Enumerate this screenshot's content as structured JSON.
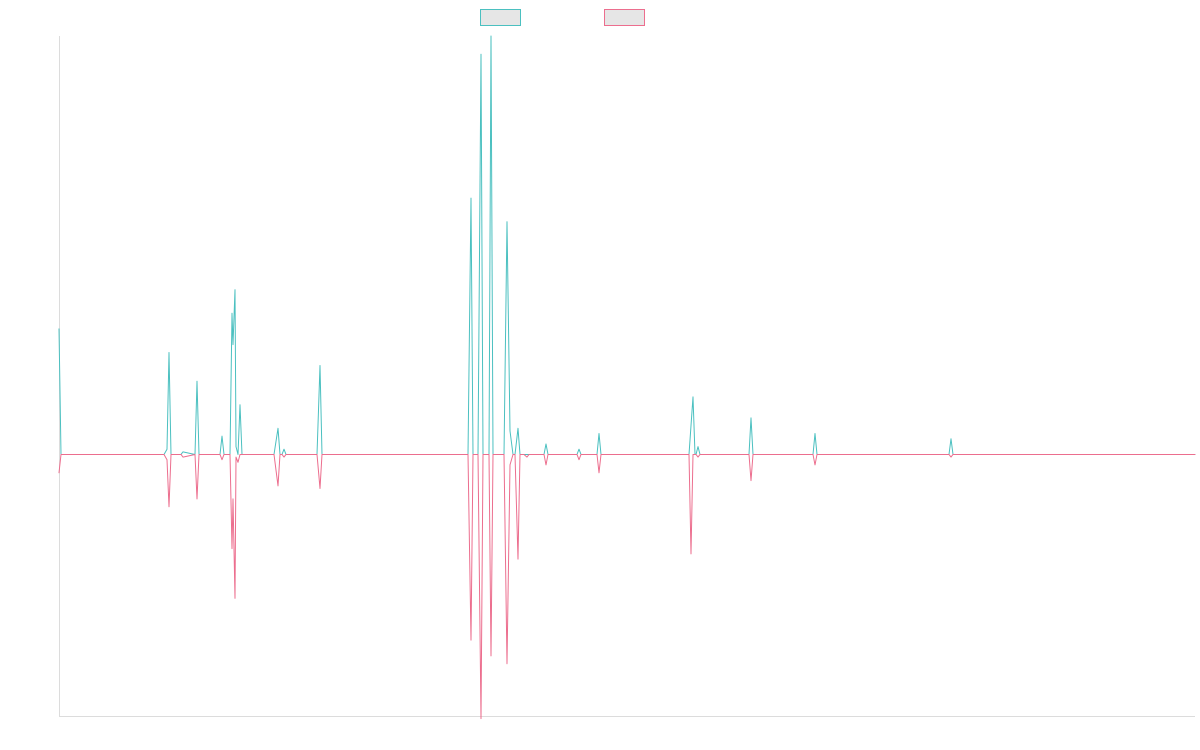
{
  "chart_data": {
    "type": "line",
    "title": "",
    "xlabel": "",
    "ylabel": "",
    "grid": false,
    "legend_position": "top-center",
    "xlim": [
      0,
      1136
    ],
    "ylim": [
      -100,
      160
    ],
    "series": [
      {
        "color": "#4bc0c0",
        "legend_fill": "#e6e6e6",
        "points": [
          [
            0,
            48
          ],
          [
            2,
            0
          ],
          [
            105,
            0
          ],
          [
            108,
            2
          ],
          [
            110,
            39
          ],
          [
            112,
            0
          ],
          [
            122,
            0
          ],
          [
            124,
            1
          ],
          [
            136,
            0
          ],
          [
            138,
            28
          ],
          [
            140,
            0
          ],
          [
            161,
            0
          ],
          [
            163,
            7
          ],
          [
            165,
            0
          ],
          [
            171,
            0
          ],
          [
            173,
            54
          ],
          [
            174,
            42
          ],
          [
            176,
            63
          ],
          [
            177,
            3
          ],
          [
            179,
            0
          ],
          [
            181,
            19
          ],
          [
            183,
            0
          ],
          [
            215,
            0
          ],
          [
            219,
            10
          ],
          [
            221,
            0
          ],
          [
            223,
            0
          ],
          [
            225,
            2
          ],
          [
            227,
            0
          ],
          [
            258,
            0
          ],
          [
            261,
            34
          ],
          [
            263,
            0
          ],
          [
            322,
            0
          ],
          [
            324,
            0
          ],
          [
            409,
            0
          ],
          [
            412,
            98
          ],
          [
            414,
            0
          ],
          [
            419,
            0
          ],
          [
            422,
            153
          ],
          [
            424,
            0
          ],
          [
            430,
            0
          ],
          [
            432,
            160
          ],
          [
            434,
            0
          ],
          [
            445,
            0
          ],
          [
            448,
            89
          ],
          [
            451,
            9
          ],
          [
            454,
            0
          ],
          [
            456,
            0
          ],
          [
            459,
            10
          ],
          [
            461,
            0
          ],
          [
            465,
            0
          ],
          [
            468,
            0
          ],
          [
            470,
            0
          ],
          [
            485,
            0
          ],
          [
            487,
            4
          ],
          [
            489,
            0
          ],
          [
            518,
            0
          ],
          [
            520,
            2
          ],
          [
            522,
            0
          ],
          [
            538,
            0
          ],
          [
            540,
            8
          ],
          [
            542,
            0
          ],
          [
            630,
            0
          ],
          [
            634,
            22
          ],
          [
            636,
            0
          ],
          [
            637,
            0
          ],
          [
            639,
            3
          ],
          [
            641,
            0
          ],
          [
            690,
            0
          ],
          [
            692,
            14
          ],
          [
            694,
            0
          ],
          [
            754,
            0
          ],
          [
            756,
            8
          ],
          [
            758,
            0
          ],
          [
            800,
            0
          ],
          [
            802,
            0
          ],
          [
            890,
            0
          ],
          [
            892,
            6
          ],
          [
            894,
            0
          ],
          [
            1136,
            0
          ]
        ]
      },
      {
        "color": "#ec6e8e",
        "legend_fill": "#e6e6e6",
        "points": [
          [
            0,
            -7
          ],
          [
            2,
            0
          ],
          [
            105,
            0
          ],
          [
            108,
            -2
          ],
          [
            110,
            -20
          ],
          [
            112,
            0
          ],
          [
            122,
            0
          ],
          [
            124,
            -1
          ],
          [
            136,
            0
          ],
          [
            138,
            -17
          ],
          [
            140,
            0
          ],
          [
            161,
            0
          ],
          [
            163,
            -2
          ],
          [
            165,
            0
          ],
          [
            171,
            0
          ],
          [
            173,
            -36
          ],
          [
            174,
            -17
          ],
          [
            176,
            -55
          ],
          [
            177,
            -1
          ],
          [
            179,
            -3
          ],
          [
            181,
            0
          ],
          [
            215,
            0
          ],
          [
            219,
            -12
          ],
          [
            221,
            0
          ],
          [
            223,
            0
          ],
          [
            225,
            -1
          ],
          [
            227,
            0
          ],
          [
            258,
            0
          ],
          [
            261,
            -13
          ],
          [
            263,
            0
          ],
          [
            322,
            0
          ],
          [
            324,
            0
          ],
          [
            409,
            0
          ],
          [
            412,
            -71
          ],
          [
            414,
            0
          ],
          [
            419,
            0
          ],
          [
            422,
            -101
          ],
          [
            424,
            0
          ],
          [
            430,
            0
          ],
          [
            432,
            -77
          ],
          [
            434,
            0
          ],
          [
            445,
            0
          ],
          [
            448,
            -80
          ],
          [
            451,
            -4
          ],
          [
            454,
            0
          ],
          [
            456,
            0
          ],
          [
            459,
            -40
          ],
          [
            461,
            0
          ],
          [
            465,
            0
          ],
          [
            468,
            -1
          ],
          [
            470,
            0
          ],
          [
            485,
            0
          ],
          [
            487,
            -4
          ],
          [
            489,
            0
          ],
          [
            518,
            0
          ],
          [
            520,
            -2
          ],
          [
            522,
            0
          ],
          [
            538,
            0
          ],
          [
            540,
            -7
          ],
          [
            542,
            0
          ],
          [
            630,
            0
          ],
          [
            632,
            -38
          ],
          [
            634,
            0
          ],
          [
            636,
            0
          ],
          [
            637,
            0
          ],
          [
            639,
            -1
          ],
          [
            641,
            0
          ],
          [
            690,
            0
          ],
          [
            692,
            -10
          ],
          [
            694,
            0
          ],
          [
            754,
            0
          ],
          [
            756,
            -4
          ],
          [
            758,
            0
          ],
          [
            800,
            0
          ],
          [
            802,
            0
          ],
          [
            890,
            0
          ],
          [
            892,
            -1
          ],
          [
            894,
            0
          ],
          [
            1136,
            0
          ]
        ]
      }
    ]
  }
}
